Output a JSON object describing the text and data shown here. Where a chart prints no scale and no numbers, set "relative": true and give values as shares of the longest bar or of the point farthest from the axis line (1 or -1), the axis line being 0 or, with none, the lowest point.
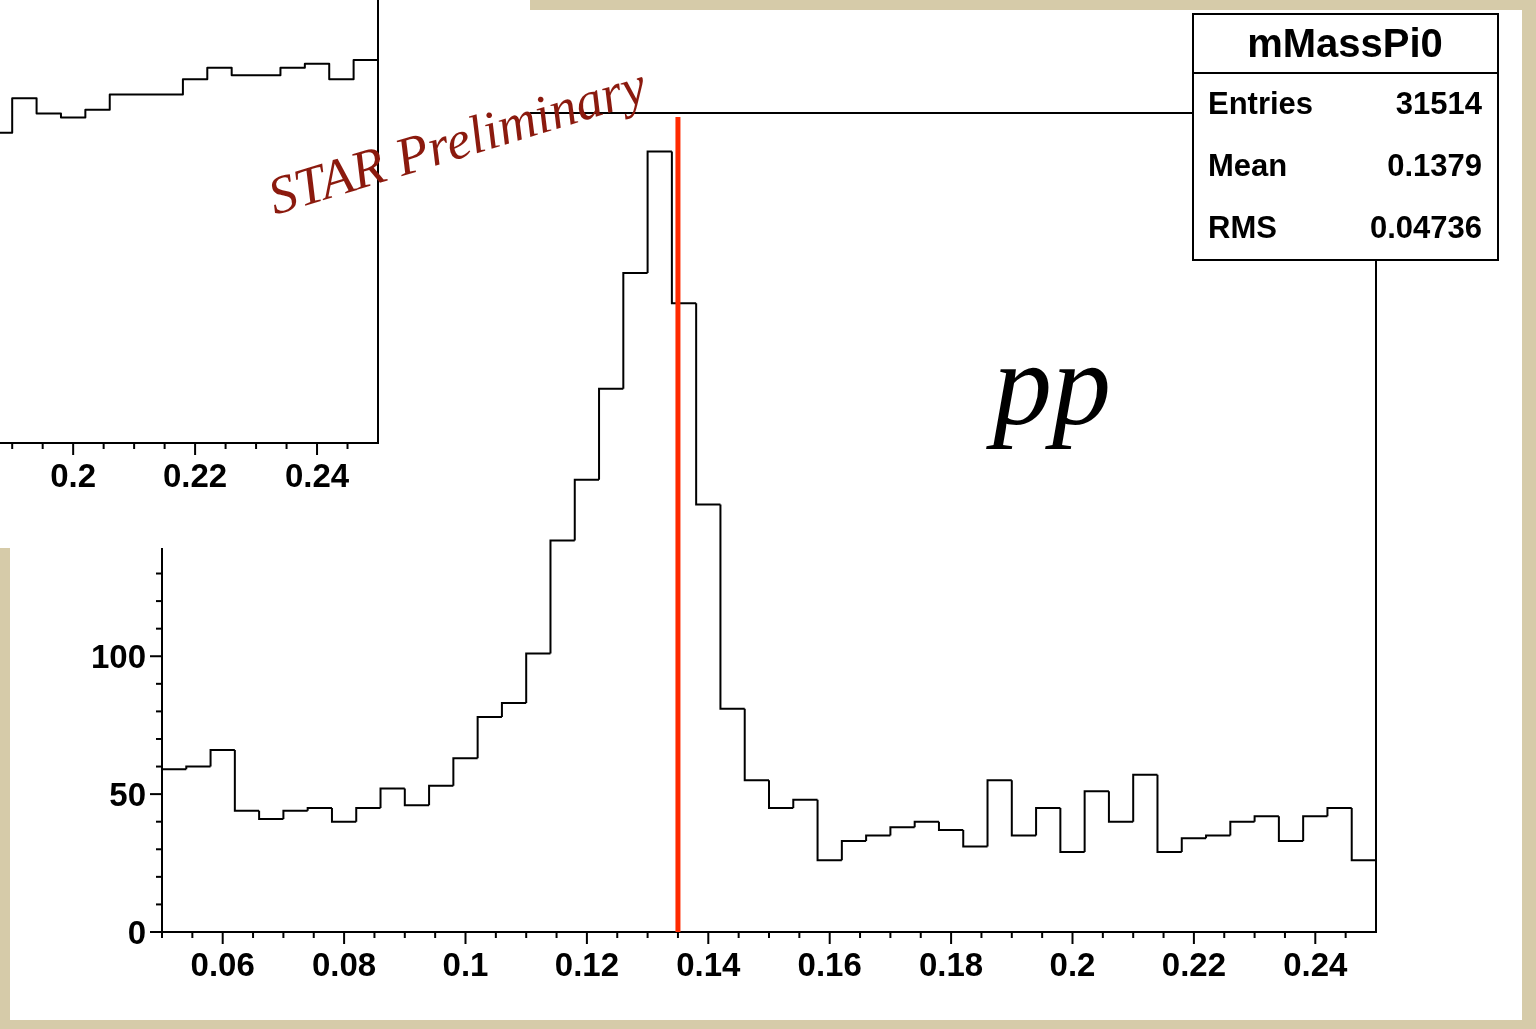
{
  "chart_data": [
    {
      "type": "step",
      "relative": true,
      "tick_labels": "x",
      "x": [
        0.188,
        0.19,
        0.194,
        0.198,
        0.202,
        0.206,
        0.21,
        0.214,
        0.218,
        0.222,
        0.226,
        0.23,
        0.234,
        0.238,
        0.242,
        0.246,
        0.25
      ],
      "values": [
        0.81,
        0.9,
        0.86,
        0.85,
        0.87,
        0.91,
        0.91,
        0.91,
        0.95,
        0.98,
        0.96,
        0.96,
        0.98,
        0.99,
        0.95,
        1,
        1
      ],
      "color": "#000000",
      "xlim": [
        0.188,
        0.25
      ],
      "xticks": [
        {
          "value": 0.19,
          "label": null
        },
        {
          "value": 0.195,
          "label": null
        },
        0.2,
        {
          "value": 0.205,
          "label": null
        },
        {
          "value": 0.21,
          "label": null
        },
        {
          "value": 0.215,
          "label": null
        },
        0.22,
        {
          "value": 0.225,
          "label": null
        },
        {
          "value": 0.23,
          "label": null
        },
        {
          "value": 0.235,
          "label": null
        },
        0.24,
        {
          "value": 0.245,
          "label": null
        }
      ]
    },
    {
      "type": "histogram",
      "title": "mMassPi0",
      "bins": [
        0.05,
        0.054,
        0.058,
        0.062,
        0.066,
        0.07,
        0.074,
        0.078,
        0.082,
        0.086,
        0.09,
        0.094,
        0.098,
        0.102,
        0.106,
        0.11,
        0.114,
        0.118,
        0.122,
        0.126,
        0.13,
        0.134,
        0.138,
        0.142,
        0.146,
        0.15,
        0.154,
        0.158,
        0.162,
        0.166,
        0.17,
        0.174,
        0.178,
        0.182,
        0.186,
        0.19,
        0.194,
        0.198,
        0.202,
        0.206,
        0.21,
        0.214,
        0.218,
        0.222,
        0.226,
        0.23,
        0.234,
        0.238,
        0.242,
        0.246,
        0.25
      ],
      "values": [
        59,
        60,
        66,
        44,
        41,
        44,
        45,
        40,
        45,
        52,
        46,
        53,
        63,
        78,
        83,
        101,
        142,
        164,
        197,
        239,
        283,
        228,
        155,
        81,
        55,
        45,
        48,
        26,
        33,
        35,
        38,
        40,
        37,
        31,
        55,
        35,
        45,
        29,
        51,
        40,
        57,
        29,
        34,
        35,
        40,
        42,
        33,
        42,
        45,
        26
      ],
      "color": "#000000",
      "xlim": [
        0.05,
        0.25
      ],
      "xticks": [
        {
          "value": 0.05,
          "label": null
        },
        {
          "value": 0.055,
          "label": null
        },
        0.06,
        {
          "value": 0.065,
          "label": null
        },
        {
          "value": 0.07,
          "label": null
        },
        {
          "value": 0.075,
          "label": null
        },
        0.08,
        {
          "value": 0.085,
          "label": null
        },
        {
          "value": 0.09,
          "label": null
        },
        {
          "value": 0.095,
          "label": null
        },
        0.1,
        {
          "value": 0.105,
          "label": null
        },
        {
          "value": 0.11,
          "label": null
        },
        {
          "value": 0.115,
          "label": null
        },
        0.12,
        {
          "value": 0.125,
          "label": null
        },
        {
          "value": 0.13,
          "label": null
        },
        {
          "value": 0.135,
          "label": null
        },
        0.14,
        {
          "value": 0.145,
          "label": null
        },
        {
          "value": 0.15,
          "label": null
        },
        {
          "value": 0.155,
          "label": null
        },
        0.16,
        {
          "value": 0.165,
          "label": null
        },
        {
          "value": 0.17,
          "label": null
        },
        {
          "value": 0.175,
          "label": null
        },
        0.18,
        {
          "value": 0.185,
          "label": null
        },
        {
          "value": 0.19,
          "label": null
        },
        {
          "value": 0.195,
          "label": null
        },
        0.2,
        {
          "value": 0.205,
          "label": null
        },
        {
          "value": 0.21,
          "label": null
        },
        {
          "value": 0.215,
          "label": null
        },
        0.22,
        {
          "value": 0.225,
          "label": null
        },
        {
          "value": 0.23,
          "label": null
        },
        {
          "value": 0.235,
          "label": null
        },
        0.24,
        {
          "value": 0.245,
          "label": null
        }
      ],
      "ylim": [
        0,
        297
      ],
      "yticks": [
        0,
        {
          "value": 10,
          "label": null
        },
        {
          "value": 20,
          "label": null
        },
        {
          "value": 30,
          "label": null
        },
        {
          "value": 40,
          "label": null
        },
        50,
        {
          "value": 60,
          "label": null
        },
        {
          "value": 70,
          "label": null
        },
        {
          "value": 80,
          "label": null
        },
        {
          "value": 90,
          "label": null
        },
        100,
        {
          "value": 110,
          "label": null
        },
        {
          "value": 120,
          "label": null
        },
        {
          "value": 130,
          "label": null
        },
        {
          "value": 140,
          "label": null
        }
      ],
      "ref_lines": [
        {
          "axis": "x",
          "value": 0.135,
          "color": "#ff2a00"
        }
      ],
      "annotations": [
        "STAR Preliminary",
        "pp",
        "Entries",
        "31514",
        "Mean",
        "0.1379",
        "RMS",
        "0.04736"
      ]
    }
  ]
}
